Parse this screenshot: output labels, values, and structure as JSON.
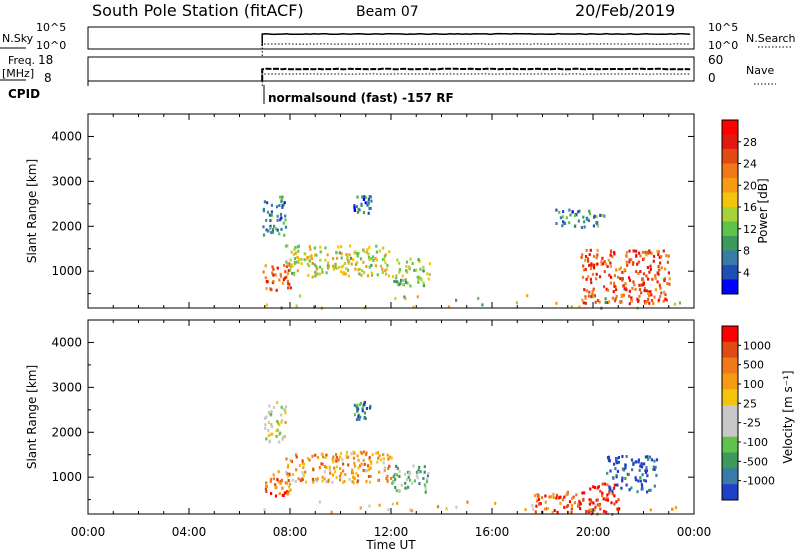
{
  "header": {
    "station": "South Pole Station (fitACF)",
    "beam": "Beam 07",
    "date": "20/Feb/2019"
  },
  "summary": {
    "nsky_label": "N.Sky",
    "nsky_ticks": [
      "10^5",
      "10^0"
    ],
    "nsearch_label": "N.Search",
    "nsearch_ticks": [
      "10^5",
      "10^0"
    ],
    "freq_label_line1": "Freq.",
    "freq_label_line2": "[MHz]",
    "freq_ticks": [
      "18",
      "8"
    ],
    "nave_label": "Nave",
    "nave_ticks": [
      "60",
      "0"
    ],
    "cpid_label": "CPID",
    "cpid_text": "normalsound (fast) -157 RF"
  },
  "chart_data": [
    {
      "type": "heatmap",
      "title": "",
      "xlabel": "Time UT",
      "ylabel": "Slant Range [km]",
      "xlim": [
        0,
        24
      ],
      "ylim": [
        180,
        4500
      ],
      "x_ticks": [
        "00:00",
        "04:00",
        "08:00",
        "12:00",
        "16:00",
        "20:00",
        "00:00"
      ],
      "y_ticks": [
        "1000",
        "2000",
        "3000",
        "4000"
      ],
      "data_start_hour": 6.9,
      "colorbar": {
        "label": "Power [dB]",
        "ticks": [
          "4",
          "8",
          "12",
          "16",
          "20",
          "24",
          "28"
        ],
        "colors": [
          "#0000ff",
          "#1e4fb4",
          "#3a7aa8",
          "#3c9a5c",
          "#5fc24a",
          "#a8d23a",
          "#f2c40c",
          "#f59b14",
          "#f07a1a",
          "#e24a14",
          "#e01a10",
          "#ff0000"
        ]
      },
      "regions": [
        {
          "t": [
            6.9,
            7.8
          ],
          "r": [
            1800,
            2700
          ],
          "level": 0.25
        },
        {
          "t": [
            6.9,
            8.0
          ],
          "r": [
            600,
            1200
          ],
          "level": 0.75
        },
        {
          "t": [
            7.8,
            12.0
          ],
          "r": [
            900,
            1600
          ],
          "level": 0.5
        },
        {
          "t": [
            10.5,
            11.2
          ],
          "r": [
            2300,
            2700
          ],
          "level": 0.2
        },
        {
          "t": [
            12.0,
            13.5
          ],
          "r": [
            700,
            1300
          ],
          "level": 0.4
        },
        {
          "t": [
            18.5,
            20.5
          ],
          "r": [
            2000,
            2400
          ],
          "level": 0.25
        },
        {
          "t": [
            19.5,
            23.0
          ],
          "r": [
            300,
            1500
          ],
          "level": 0.8
        },
        {
          "t": [
            6.9,
            24.0
          ],
          "r": [
            200,
            500
          ],
          "level": 0.45
        }
      ]
    },
    {
      "type": "heatmap",
      "title": "",
      "xlabel": "Time UT",
      "ylabel": "Slant Range [km]",
      "xlim": [
        0,
        24
      ],
      "ylim": [
        180,
        4500
      ],
      "x_ticks": [
        "00:00",
        "04:00",
        "08:00",
        "12:00",
        "16:00",
        "20:00",
        "00:00"
      ],
      "y_ticks": [
        "1000",
        "2000",
        "3000",
        "4000"
      ],
      "data_start_hour": 6.9,
      "colorbar": {
        "label": "Velocity [m s⁻¹]",
        "ticks": [
          "1000",
          "500",
          "100",
          "25",
          "-25",
          "-100",
          "-500",
          "-1000"
        ],
        "colors": [
          "#2040c8",
          "#3a7aa8",
          "#3c9a5c",
          "#5fc24a",
          "#c8c8c8",
          "#c8c8c8",
          "#f2c40c",
          "#f59b14",
          "#f07a1a",
          "#e24a14",
          "#ff0000"
        ]
      },
      "regions": [
        {
          "t": [
            6.9,
            7.8
          ],
          "r": [
            1800,
            2700
          ],
          "level": 0.48
        },
        {
          "t": [
            6.9,
            8.0
          ],
          "r": [
            600,
            1200
          ],
          "level": 0.8
        },
        {
          "t": [
            7.8,
            12.0
          ],
          "r": [
            900,
            1600
          ],
          "level": 0.7
        },
        {
          "t": [
            10.5,
            11.2
          ],
          "r": [
            2300,
            2700
          ],
          "level": 0.15
        },
        {
          "t": [
            12.0,
            13.5
          ],
          "r": [
            700,
            1300
          ],
          "level": 0.3
        },
        {
          "t": [
            17.5,
            19.5
          ],
          "r": [
            250,
            700
          ],
          "level": 0.85
        },
        {
          "t": [
            19.5,
            21.0
          ],
          "r": [
            200,
            900
          ],
          "level": 0.9
        },
        {
          "t": [
            20.5,
            22.5
          ],
          "r": [
            700,
            1500
          ],
          "level": 0.05
        },
        {
          "t": [
            6.9,
            24.0
          ],
          "r": [
            200,
            500
          ],
          "level": 0.6
        }
      ]
    }
  ]
}
